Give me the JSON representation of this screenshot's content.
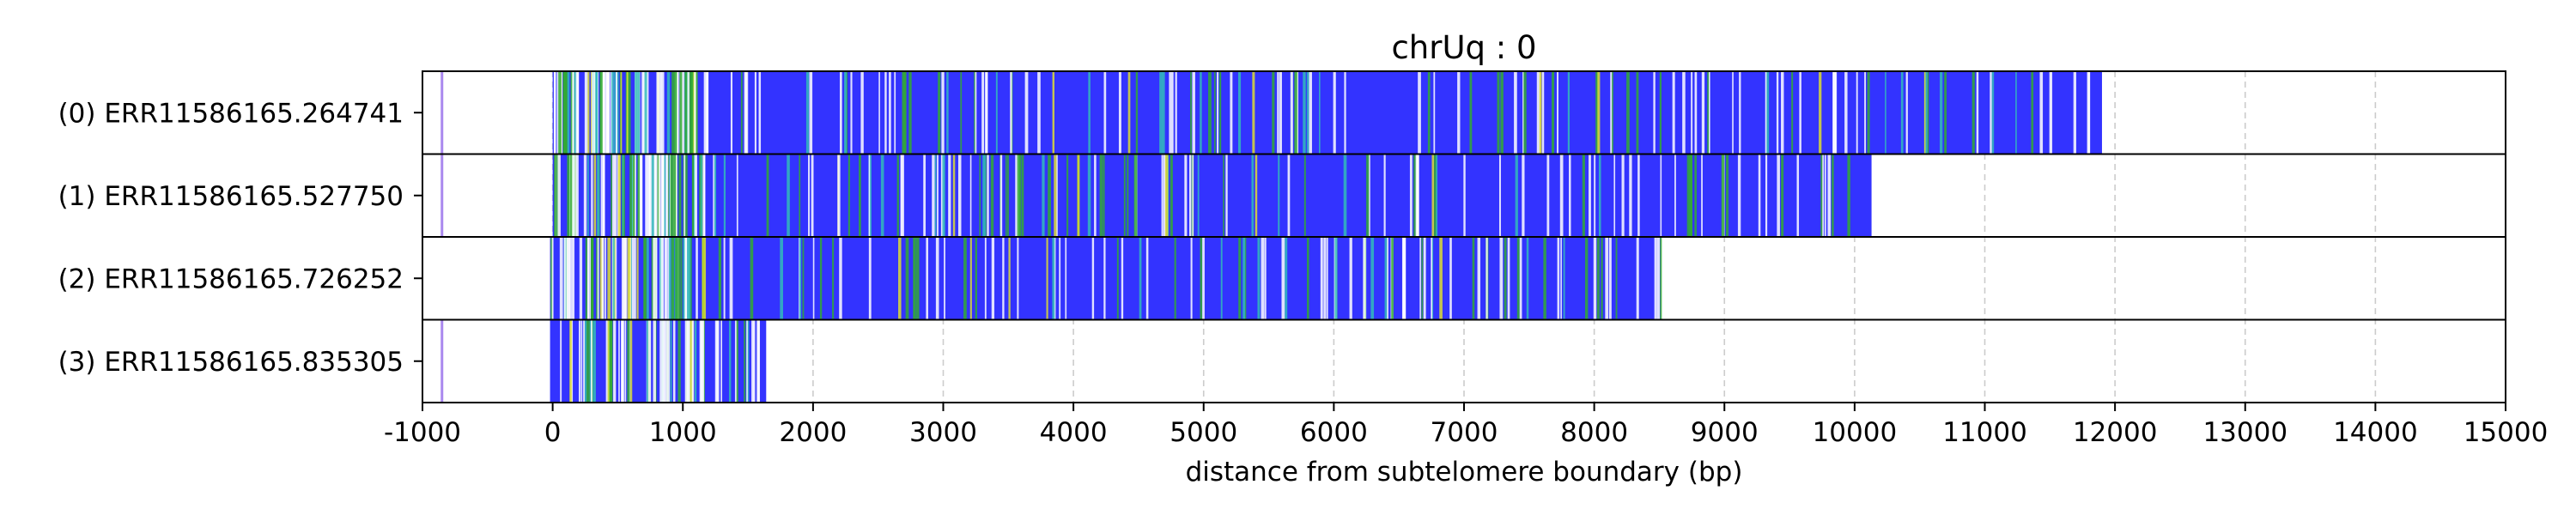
{
  "chart_data": {
    "type": "track",
    "title": "chrUq : 0",
    "xlabel": "distance from subtelomere boundary (bp)",
    "xlim": [
      -1000,
      15000
    ],
    "xticks": [
      -1000,
      0,
      1000,
      2000,
      3000,
      4000,
      5000,
      6000,
      7000,
      8000,
      9000,
      10000,
      11000,
      12000,
      13000,
      14000,
      15000
    ],
    "grid": "vertical dashed",
    "colors": {
      "repeat": "#3333ff",
      "variant_green": "#33aa33",
      "variant_cyan": "#33bbbb",
      "variant_yellow": "#dddd33",
      "variant_white": "#ffffff",
      "start_marker": "#aa88ee",
      "grid": "#cccccc"
    },
    "reads": [
      {
        "label": "(0) ERR11586165.264741",
        "start": 0,
        "end": 11900,
        "marker": -850
      },
      {
        "label": "(1) ERR11586165.527750",
        "start": 0,
        "end": 10130,
        "marker": -850
      },
      {
        "label": "(2) ERR11586165.726252",
        "start": -20,
        "end": 8510,
        "marker": null
      },
      {
        "label": "(3) ERR11586165.835305",
        "start": -20,
        "end": 1640,
        "marker": -850
      }
    ]
  }
}
